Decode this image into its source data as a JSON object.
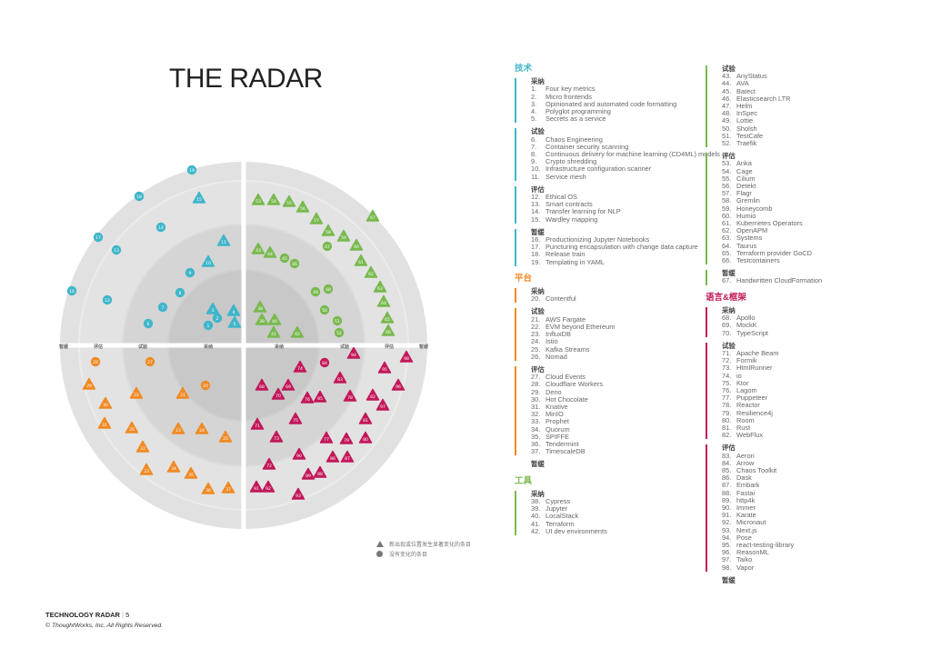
{
  "title": "THE RADAR",
  "ring_labels": [
    "采纳",
    "试验",
    "评估",
    "暂缓"
  ],
  "colors": {
    "tech": "#3fb6c9",
    "platform": "#f08a24",
    "tools": "#79b94f",
    "languages": "#c2185b"
  },
  "quadrants": [
    {
      "id": "tech",
      "title": "技术",
      "color": "#3fb6c9",
      "sections": [
        {
          "label": "采纳",
          "items": [
            [
              "1.",
              "Four key metrics"
            ],
            [
              "2.",
              "Micro frontends"
            ],
            [
              "3.",
              "Opinionated and automated code formatting"
            ],
            [
              "4.",
              "Polyglot programming"
            ],
            [
              "5.",
              "Secrets as a service"
            ]
          ]
        },
        {
          "label": "试验",
          "items": [
            [
              "6.",
              "Chaos Engineering"
            ],
            [
              "7.",
              "Container security scanning"
            ],
            [
              "8.",
              "Continuous delivery for machine learning (CD4ML) models"
            ],
            [
              "9.",
              "Crypto shredding"
            ],
            [
              "10.",
              "Infrastructure configuration scanner"
            ],
            [
              "11.",
              "Service mesh"
            ]
          ]
        },
        {
          "label": "评估",
          "items": [
            [
              "12.",
              "Ethical OS"
            ],
            [
              "13.",
              "Smart contracts"
            ],
            [
              "14.",
              "Transfer learning for NLP"
            ],
            [
              "15.",
              "Wardley mapping"
            ]
          ]
        },
        {
          "label": "暂缓",
          "items": [
            [
              "16.",
              "Productionizing Jupyter Notebooks"
            ],
            [
              "17.",
              "Puncturing encapsulation with change data capture"
            ],
            [
              "18.",
              "Release train"
            ],
            [
              "19.",
              "Templating in YAML"
            ]
          ]
        }
      ]
    },
    {
      "id": "platform",
      "title": "平台",
      "color": "#f08a24",
      "sections": [
        {
          "label": "采纳",
          "items": [
            [
              "20.",
              "Contentful"
            ]
          ]
        },
        {
          "label": "试验",
          "items": [
            [
              "21.",
              "AWS Fargate"
            ],
            [
              "22.",
              "EVM beyond Ethereum"
            ],
            [
              "23.",
              "InfluxDB"
            ],
            [
              "24.",
              "Istio"
            ],
            [
              "25.",
              "Kafka Streams"
            ],
            [
              "26.",
              "Nomad"
            ]
          ]
        },
        {
          "label": "评估",
          "items": [
            [
              "27.",
              "Cloud Events"
            ],
            [
              "28.",
              "Cloudflare Workers"
            ],
            [
              "29.",
              "Deno"
            ],
            [
              "30.",
              "Hot Chocolate"
            ],
            [
              "31.",
              "Knative"
            ],
            [
              "32.",
              "MinIO"
            ],
            [
              "33.",
              "Prophet"
            ],
            [
              "34.",
              "Quorum"
            ],
            [
              "35.",
              "SPIFFE"
            ],
            [
              "36.",
              "Tendermint"
            ],
            [
              "37.",
              "TimescaleDB"
            ]
          ]
        },
        {
          "label": "暂缓",
          "items": []
        }
      ]
    },
    {
      "id": "tools",
      "title": "工具",
      "color": "#79b94f",
      "sections": [
        {
          "label": "采纳",
          "items": [
            [
              "38.",
              "Cypress"
            ],
            [
              "39.",
              "Jupyter"
            ],
            [
              "40.",
              "LocalStack"
            ],
            [
              "41.",
              "Terraform"
            ],
            [
              "42.",
              "UI dev environments"
            ]
          ]
        }
      ]
    },
    {
      "id": "tools2",
      "title": "",
      "color": "#79b94f",
      "sections": [
        {
          "label": "试验",
          "items": [
            [
              "43.",
              "AnyStatus"
            ],
            [
              "44.",
              "AVA"
            ],
            [
              "45.",
              "Batect"
            ],
            [
              "46.",
              "Elasticsearch LTR"
            ],
            [
              "47.",
              "Helm"
            ],
            [
              "48.",
              "InSpec"
            ],
            [
              "49.",
              "Lottie"
            ],
            [
              "50.",
              "Sholsh"
            ],
            [
              "51.",
              "TestCafe"
            ],
            [
              "52.",
              "Traefik"
            ]
          ]
        },
        {
          "label": "评估",
          "items": [
            [
              "53.",
              "Anka"
            ],
            [
              "54.",
              "Cage"
            ],
            [
              "55.",
              "Cilium"
            ],
            [
              "56.",
              "Detekt"
            ],
            [
              "57.",
              "Flagr"
            ],
            [
              "58.",
              "Gremlin"
            ],
            [
              "59.",
              "Honeycomb"
            ],
            [
              "60.",
              "Humio"
            ],
            [
              "61.",
              "Kubernetes Operators"
            ],
            [
              "62.",
              "OpenAPM"
            ],
            [
              "63.",
              "Systems"
            ],
            [
              "64.",
              "Taurus"
            ],
            [
              "65.",
              "Terraform provider GoCD"
            ],
            [
              "66.",
              "Testcontainers"
            ]
          ]
        },
        {
          "label": "暂缓",
          "items": [
            [
              "67.",
              "Handwritten CloudFormation"
            ]
          ]
        }
      ]
    },
    {
      "id": "languages",
      "title": "语言&框架",
      "color": "#c2185b",
      "sections": [
        {
          "label": "采纳",
          "items": [
            [
              "68.",
              "Apollo"
            ],
            [
              "69.",
              "MockK"
            ],
            [
              "70.",
              "TypeScript"
            ]
          ]
        },
        {
          "label": "试验",
          "items": [
            [
              "71.",
              "Apache Beam"
            ],
            [
              "72.",
              "Formik"
            ],
            [
              "73.",
              "HtmlRunner"
            ],
            [
              "74.",
              "io"
            ],
            [
              "75.",
              "Ktor"
            ],
            [
              "76.",
              "Lagom"
            ],
            [
              "77.",
              "Puppeteer"
            ],
            [
              "78.",
              "Reactor"
            ],
            [
              "79.",
              "Resilience4j"
            ],
            [
              "80.",
              "Room"
            ],
            [
              "81.",
              "Rust"
            ],
            [
              "82.",
              "WebFlux"
            ]
          ]
        },
        {
          "label": "评估",
          "items": [
            [
              "83.",
              "Aeron"
            ],
            [
              "84.",
              "Arrow"
            ],
            [
              "85.",
              "Chaos Toolkit"
            ],
            [
              "86.",
              "Dask"
            ],
            [
              "87.",
              "Embark"
            ],
            [
              "88.",
              "Fastai"
            ],
            [
              "89.",
              "http4k"
            ],
            [
              "90.",
              "Immer"
            ],
            [
              "91.",
              "Karate"
            ],
            [
              "92.",
              "Micronaut"
            ],
            [
              "93.",
              "Next.js"
            ],
            [
              "94.",
              "Pose"
            ],
            [
              "95.",
              "react-testing-library"
            ],
            [
              "96.",
              "ReasonML"
            ],
            [
              "97.",
              "Taiko"
            ],
            [
              "98.",
              "Vapor"
            ]
          ]
        },
        {
          "label": "暂缓",
          "items": []
        }
      ]
    }
  ],
  "blips": {
    "tech": [
      [
        1,
        229,
        358,
        "c"
      ],
      [
        2,
        239,
        350,
        "c"
      ],
      [
        3,
        234,
        340,
        "t"
      ],
      [
        4,
        257,
        342,
        "t"
      ],
      [
        5,
        258,
        355,
        "t"
      ],
      [
        6,
        163,
        356,
        "c"
      ],
      [
        7,
        179,
        338,
        "c"
      ],
      [
        8,
        198,
        322,
        "c"
      ],
      [
        9,
        209,
        300,
        "c"
      ],
      [
        10,
        229,
        288,
        "t"
      ],
      [
        11,
        246,
        265,
        "t"
      ],
      [
        12,
        118,
        330,
        "c"
      ],
      [
        13,
        128,
        275,
        "c"
      ],
      [
        14,
        177,
        250,
        "c"
      ],
      [
        15,
        219,
        218,
        "t"
      ],
      [
        16,
        79,
        320,
        "c"
      ],
      [
        17,
        108,
        261,
        "c"
      ],
      [
        18,
        153,
        216,
        "c"
      ],
      [
        19,
        211,
        187,
        "c"
      ]
    ],
    "tools": [
      [
        38,
        286,
        338,
        "t"
      ],
      [
        39,
        288,
        352,
        "t"
      ],
      [
        40,
        302,
        352,
        "t"
      ],
      [
        41,
        301,
        366,
        "t"
      ],
      [
        42,
        327,
        366,
        "t"
      ],
      [
        43,
        284,
        274,
        "t"
      ],
      [
        44,
        297,
        278,
        "t"
      ],
      [
        45,
        313,
        284,
        "c"
      ],
      [
        46,
        324,
        290,
        "c"
      ],
      [
        47,
        360,
        271,
        "c"
      ],
      [
        48,
        361,
        318,
        "c"
      ],
      [
        49,
        347,
        321,
        "c"
      ],
      [
        50,
        357,
        341,
        "c"
      ],
      [
        51,
        371,
        353,
        "c"
      ],
      [
        52,
        373,
        366,
        "c"
      ],
      [
        53,
        284,
        220,
        "t"
      ],
      [
        54,
        301,
        220,
        "t"
      ],
      [
        55,
        318,
        222,
        "t"
      ],
      [
        56,
        333,
        228,
        "t"
      ],
      [
        57,
        348,
        241,
        "t"
      ],
      [
        58,
        361,
        254,
        "t"
      ],
      [
        59,
        378,
        260,
        "t"
      ],
      [
        60,
        392,
        270,
        "t"
      ],
      [
        61,
        397,
        287,
        "t"
      ],
      [
        62,
        408,
        300,
        "t"
      ],
      [
        63,
        418,
        316,
        "t"
      ],
      [
        64,
        422,
        332,
        "t"
      ],
      [
        65,
        426,
        350,
        "t"
      ],
      [
        66,
        427,
        364,
        "t"
      ],
      [
        67,
        410,
        238,
        "t"
      ]
    ],
    "platform": [
      [
        20,
        226,
        424,
        "c"
      ],
      [
        21,
        201,
        433,
        "t"
      ],
      [
        22,
        150,
        433,
        "t"
      ],
      [
        23,
        196,
        472,
        "t"
      ],
      [
        24,
        222,
        472,
        "t"
      ],
      [
        25,
        248,
        481,
        "t"
      ],
      [
        26,
        145,
        471,
        "t"
      ],
      [
        27,
        165,
        398,
        "c"
      ],
      [
        28,
        105,
        398,
        "c"
      ],
      [
        29,
        98,
        423,
        "t"
      ],
      [
        30,
        116,
        444,
        "t"
      ],
      [
        31,
        115,
        466,
        "t"
      ],
      [
        32,
        157,
        492,
        "t"
      ],
      [
        33,
        161,
        517,
        "t"
      ],
      [
        34,
        191,
        514,
        "t"
      ],
      [
        35,
        210,
        521,
        "t"
      ],
      [
        36,
        229,
        538,
        "t"
      ],
      [
        37,
        251,
        537,
        "t"
      ]
    ],
    "languages": [
      [
        68,
        288,
        424,
        "t"
      ],
      [
        69,
        317,
        424,
        "t"
      ],
      [
        70,
        306,
        434,
        "t"
      ],
      [
        71,
        283,
        467,
        "t"
      ],
      [
        72,
        296,
        511,
        "t"
      ],
      [
        73,
        304,
        481,
        "t"
      ],
      [
        74,
        330,
        404,
        "t"
      ],
      [
        75,
        325,
        461,
        "t"
      ],
      [
        76,
        338,
        438,
        "t"
      ],
      [
        77,
        359,
        482,
        "t"
      ],
      [
        78,
        385,
        436,
        "t"
      ],
      [
        79,
        381,
        483,
        "t"
      ],
      [
        80,
        402,
        482,
        "t"
      ],
      [
        81,
        402,
        461,
        "t"
      ],
      [
        82,
        410,
        435,
        "t"
      ],
      [
        83,
        374,
        416,
        "t"
      ],
      [
        84,
        357,
        399,
        "c"
      ],
      [
        85,
        352,
        437,
        "t"
      ],
      [
        86,
        366,
        503,
        "t"
      ],
      [
        87,
        382,
        503,
        "t"
      ],
      [
        88,
        352,
        520,
        "t"
      ],
      [
        89,
        339,
        522,
        "t"
      ],
      [
        90,
        329,
        500,
        "t"
      ],
      [
        91,
        282,
        536,
        "t"
      ],
      [
        92,
        295,
        536,
        "t"
      ],
      [
        93,
        328,
        544,
        "t"
      ],
      [
        94,
        389,
        389,
        "t"
      ],
      [
        95,
        423,
        405,
        "t"
      ],
      [
        96,
        438,
        424,
        "t"
      ],
      [
        97,
        421,
        446,
        "t"
      ],
      [
        98,
        447,
        393,
        "t"
      ]
    ]
  },
  "legend": [
    "新出现或位置发生显著变化的条目",
    "没有变化的条目"
  ],
  "footer": {
    "brand": "TECHNOLOGY RADAR",
    "sep": "|",
    "page": "5",
    "copyright": "© ThoughtWorks, Inc. All Rights Reserved."
  }
}
